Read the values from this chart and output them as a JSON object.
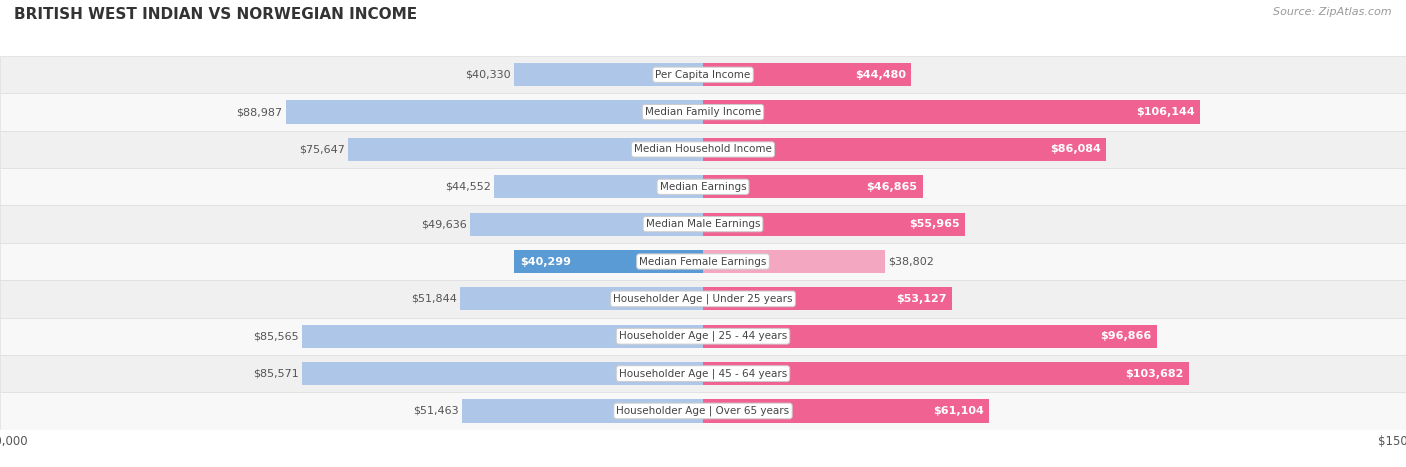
{
  "title": "BRITISH WEST INDIAN VS NORWEGIAN INCOME",
  "source": "Source: ZipAtlas.com",
  "categories": [
    "Per Capita Income",
    "Median Family Income",
    "Median Household Income",
    "Median Earnings",
    "Median Male Earnings",
    "Median Female Earnings",
    "Householder Age | Under 25 years",
    "Householder Age | 25 - 44 years",
    "Householder Age | 45 - 64 years",
    "Householder Age | Over 65 years"
  ],
  "british_values": [
    40330,
    88987,
    75647,
    44552,
    49636,
    40299,
    51844,
    85565,
    85571,
    51463
  ],
  "norwegian_values": [
    44480,
    106144,
    86084,
    46865,
    55965,
    38802,
    53127,
    96866,
    103682,
    61104
  ],
  "british_labels": [
    "$40,330",
    "$88,987",
    "$75,647",
    "$44,552",
    "$49,636",
    "$40,299",
    "$51,844",
    "$85,565",
    "$85,571",
    "$51,463"
  ],
  "norwegian_labels": [
    "$44,480",
    "$106,144",
    "$86,084",
    "$46,865",
    "$55,965",
    "$38,802",
    "$53,127",
    "$96,866",
    "$103,682",
    "$61,104"
  ],
  "british_color_strong": "#5b9bd5",
  "british_color_light": "#aec6e8",
  "norwegian_color_strong": "#f06292",
  "norwegian_color_light": "#f4a7c0",
  "max_value": 150000,
  "bg_color": "#ffffff",
  "bar_height": 0.62,
  "label_fontsize": 8.0,
  "category_fontsize": 7.5,
  "title_fontsize": 11
}
